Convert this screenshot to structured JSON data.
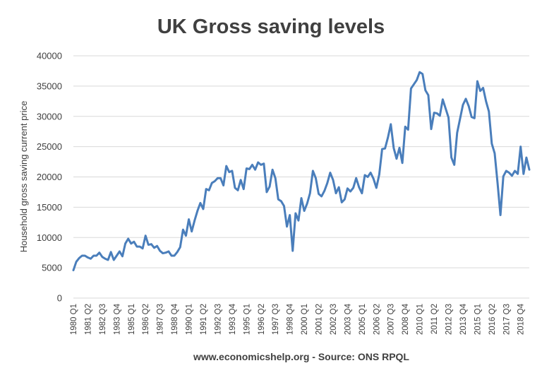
{
  "chart_data": {
    "type": "line",
    "title": "UK Gross saving levels",
    "ylabel": "Household gross saving current price",
    "xlabel": "",
    "source": "www.economicshelp.org - Source: ONS RPQL",
    "ylim": [
      0,
      40000
    ],
    "yticks": [
      "0",
      "5000",
      "10000",
      "15000",
      "20000",
      "25000",
      "30000",
      "35000",
      "40000"
    ],
    "grid": true,
    "legend": "none",
    "line_color": "#4a7ebb",
    "xtick_labels": [
      "1980 Q1",
      "1981 Q2",
      "1982 Q3",
      "1983 Q4",
      "1985 Q1",
      "1986 Q2",
      "1987 Q3",
      "1988 Q4",
      "1990 Q1",
      "1991 Q2",
      "1992 Q3",
      "1993 Q4",
      "1995 Q1",
      "1996 Q2",
      "1997 Q3",
      "1998 Q4",
      "2000 Q1",
      "2001 Q2",
      "2002 Q3",
      "2003 Q4",
      "2005 Q1",
      "2006 Q2",
      "2007 Q3",
      "2008 Q4",
      "2010 Q1",
      "2011 Q2",
      "2012 Q3",
      "2013 Q4",
      "2015 Q1",
      "2016 Q2",
      "2017 Q3",
      "2018 Q4"
    ],
    "x_start": "1980 Q1",
    "x_end": "2019 Q3",
    "series": [
      {
        "values": [
          4600,
          6000,
          6600,
          7000,
          7000,
          6700,
          6500,
          7000,
          7000,
          7500,
          6800,
          6500,
          6300,
          7600,
          6300,
          7000,
          7700,
          6900,
          9000,
          9800,
          9000,
          9300,
          8500,
          8500,
          8200,
          10300,
          8800,
          8900,
          8300,
          8600,
          7800,
          7400,
          7500,
          7700,
          7000,
          7000,
          7600,
          8400,
          11300,
          10300,
          13000,
          11000,
          12800,
          14400,
          15700,
          14700,
          18000,
          17800,
          19000,
          19300,
          19800,
          19800,
          18600,
          21800,
          20800,
          21000,
          18200,
          17800,
          19500,
          18000,
          21400,
          21300,
          22000,
          21200,
          22400,
          22000,
          22200,
          17500,
          18400,
          21200,
          19800,
          16300,
          16000,
          15200,
          11800,
          13700,
          7800,
          14000,
          12800,
          16500,
          14400,
          15600,
          17300,
          21000,
          19800,
          17200,
          16800,
          17700,
          19000,
          20700,
          19500,
          17300,
          18300,
          15800,
          16300,
          18100,
          17600,
          18200,
          19800,
          18300,
          17300,
          20300,
          20000,
          20700,
          19700,
          18200,
          20400,
          24600,
          24700,
          26500,
          28700,
          24800,
          23000,
          24800,
          22300,
          28300,
          27800,
          34600,
          35300,
          36000,
          37300,
          37000,
          34300,
          33500,
          27900,
          30600,
          30500,
          30100,
          32800,
          31300,
          29800,
          23200,
          22000,
          27300,
          29600,
          31900,
          32900,
          31700,
          29900,
          29700,
          35800,
          34200,
          34700,
          32500,
          30800,
          25500,
          23900,
          19000,
          13700,
          20100,
          21000,
          20700,
          20200,
          21000,
          20500,
          25000,
          20500,
          23200,
          21200
        ]
      }
    ]
  }
}
